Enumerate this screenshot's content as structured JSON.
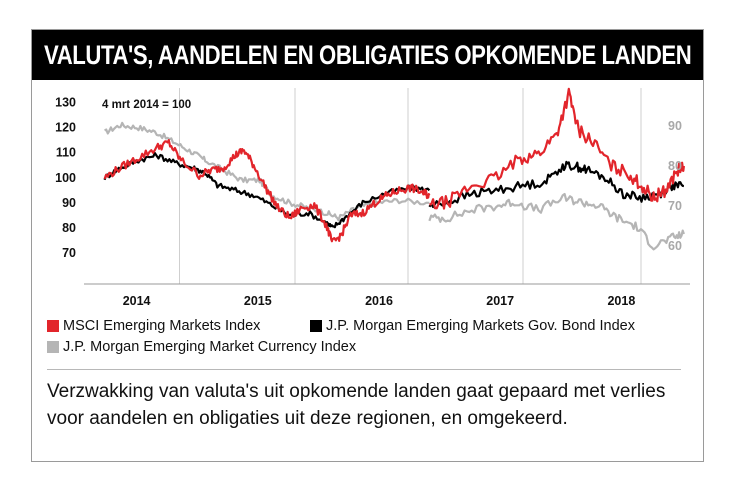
{
  "title": "VALUTA'S, AANDELEN EN OBLIGATIES OPKOMENDE LANDEN",
  "note": "4 mrt 2014 = 100",
  "caption": "Verzwakking van valuta's uit opkomende landen gaat gepaard met verlies voor aandelen en obligaties uit deze regionen, en omgekeerd.",
  "colors": {
    "msci": "#e2252b",
    "jpm_bond": "#000000",
    "jpm_fx": "#b5b5b5"
  },
  "chart_data": [
    {
      "type": "line",
      "x_unit": "year",
      "x_ticks": [
        "2014",
        "2015",
        "2016"
      ],
      "y_ticks": [
        "130",
        "120",
        "110",
        "100",
        "90",
        "80",
        "70"
      ],
      "ylim": [
        65,
        132
      ],
      "series": [
        {
          "name": "MSCI Emerging Markets Index",
          "key": "msci",
          "x": [
            2014.17,
            2014.3,
            2014.45,
            2014.6,
            2014.7,
            2014.8,
            2014.95,
            2015.05,
            2015.15,
            2015.25,
            2015.32,
            2015.4,
            2015.5,
            2015.6,
            2015.7,
            2015.8,
            2015.9,
            2016.0,
            2016.05,
            2016.12,
            2016.2,
            2016.3,
            2016.4,
            2016.5,
            2016.6,
            2016.7,
            2016.8,
            2016.85
          ],
          "y": [
            100,
            104,
            108,
            112,
            114,
            107,
            101,
            103,
            104,
            109,
            111,
            105,
            96,
            88,
            84,
            88,
            89,
            81,
            74,
            77,
            85,
            86,
            90,
            93,
            95,
            96,
            94,
            93
          ]
        },
        {
          "name": "J.P. Morgan Emerging Markets Gov. Bond Index",
          "key": "jpm_bond",
          "x": [
            2014.17,
            2014.3,
            2014.45,
            2014.6,
            2014.75,
            2014.9,
            2015.0,
            2015.1,
            2015.25,
            2015.4,
            2015.55,
            2015.7,
            2015.85,
            2016.0,
            2016.05,
            2016.15,
            2016.3,
            2016.5,
            2016.7,
            2016.85
          ],
          "y": [
            100,
            104,
            107,
            109,
            106,
            104,
            102,
            97,
            95,
            93,
            89,
            85,
            86,
            82,
            80,
            84,
            90,
            94,
            96,
            95
          ]
        },
        {
          "name": "J.P. Morgan Emerging Market Currency Index",
          "key": "jpm_fx",
          "x": [
            2014.17,
            2014.3,
            2014.45,
            2014.6,
            2014.75,
            2014.9,
            2015.0,
            2015.15,
            2015.3,
            2015.45,
            2015.55,
            2015.7,
            2015.85,
            2016.0,
            2016.1,
            2016.25,
            2016.4,
            2016.6,
            2016.85
          ],
          "y": [
            118,
            121,
            120,
            118,
            114,
            110,
            107,
            103,
            99,
            99,
            93,
            90,
            88,
            86,
            84,
            88,
            90,
            91,
            90
          ]
        }
      ]
    },
    {
      "type": "line",
      "x_unit": "year",
      "x_ticks": [
        "2017",
        "2018"
      ],
      "y_ticks": [
        "90",
        "80",
        "70",
        "60"
      ],
      "ylim": [
        57,
        103
      ],
      "series": [
        {
          "name": "MSCI Emerging Markets Index",
          "key": "msci",
          "x": [
            2016.85,
            2017.0,
            2017.2,
            2017.4,
            2017.6,
            2017.75,
            2017.9,
            2018.0,
            2018.08,
            2018.2,
            2018.35,
            2018.5,
            2018.6,
            2018.7,
            2018.8,
            2018.9,
            2018.95
          ],
          "y": [
            70,
            71,
            75,
            77,
            82,
            83,
            88,
            98,
            89,
            86,
            80,
            78,
            75,
            72,
            74,
            79,
            80
          ]
        },
        {
          "name": "J.P. Morgan Emerging Markets Gov. Bond Index",
          "key": "jpm_bond",
          "x": [
            2016.85,
            2017.0,
            2017.2,
            2017.4,
            2017.6,
            2017.8,
            2017.95,
            2018.05,
            2018.15,
            2018.3,
            2018.45,
            2018.6,
            2018.75,
            2018.85,
            2018.95
          ],
          "y": [
            70,
            71,
            73,
            74,
            75,
            76,
            80,
            80,
            79,
            77,
            73,
            72,
            73,
            75,
            75
          ]
        },
        {
          "name": "J.P. Morgan Emerging Market Currency Index",
          "key": "jpm_fx",
          "x": [
            2016.85,
            2017.0,
            2017.2,
            2017.4,
            2017.55,
            2017.75,
            2017.95,
            2018.1,
            2018.25,
            2018.4,
            2018.55,
            2018.7,
            2018.85,
            2018.95
          ],
          "y": [
            67,
            67,
            69,
            70,
            71,
            69,
            72,
            71,
            70,
            67,
            65,
            60,
            62,
            63
          ]
        }
      ]
    }
  ]
}
